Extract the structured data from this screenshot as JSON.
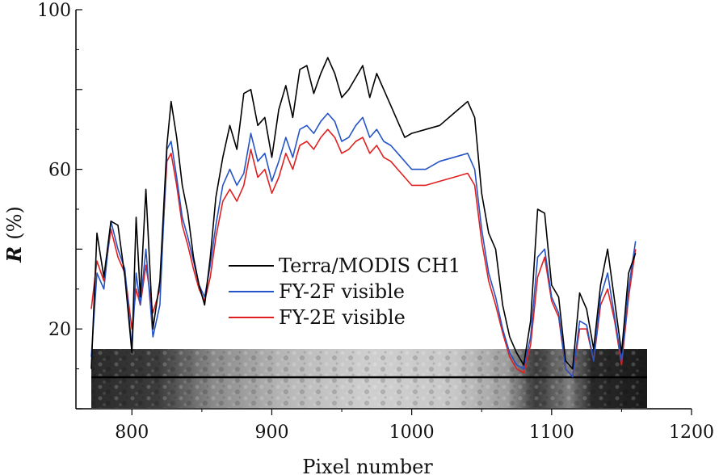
{
  "chart_data": {
    "type": "line",
    "xlabel": "Pixel number",
    "ylabel_symbol": "R",
    "ylabel_unit": "(%)",
    "xlim": [
      760,
      1200
    ],
    "ylim": [
      0,
      100
    ],
    "x_ticks": [
      800,
      900,
      1000,
      1100,
      1200
    ],
    "y_ticks": [
      20,
      60,
      100
    ],
    "legend_position": "center",
    "inset_image": {
      "description_kind": "satellite-strip",
      "x_range": [
        771,
        1183
      ],
      "y_range": [
        1,
        23
      ],
      "scan_line_y": 10
    },
    "series": [
      {
        "name": "Terra/MODIS CH1",
        "color": "#000000",
        "x": [
          771,
          775,
          780,
          785,
          790,
          795,
          800,
          803,
          806,
          810,
          815,
          820,
          825,
          828,
          832,
          836,
          840,
          844,
          848,
          852,
          856,
          860,
          865,
          870,
          875,
          880,
          885,
          890,
          895,
          900,
          905,
          910,
          915,
          920,
          925,
          930,
          935,
          940,
          945,
          950,
          955,
          960,
          965,
          970,
          975,
          980,
          985,
          990,
          995,
          1000,
          1010,
          1020,
          1030,
          1040,
          1045,
          1050,
          1055,
          1060,
          1065,
          1070,
          1075,
          1080,
          1085,
          1090,
          1095,
          1100,
          1105,
          1110,
          1115,
          1120,
          1125,
          1130,
          1135,
          1140,
          1145,
          1150,
          1155,
          1160
        ],
        "values": [
          10,
          44,
          33,
          47,
          46,
          33,
          14,
          48,
          28,
          55,
          20,
          32,
          66,
          77,
          68,
          56,
          49,
          38,
          31,
          26,
          38,
          53,
          63,
          71,
          65,
          79,
          80,
          71,
          73,
          63,
          75,
          81,
          73,
          85,
          86,
          79,
          84,
          88,
          84,
          78,
          80,
          83,
          86,
          78,
          84,
          80,
          76,
          72,
          68,
          69,
          70,
          71,
          74,
          77,
          73,
          54,
          44,
          40,
          26,
          18,
          14,
          11,
          22,
          50,
          49,
          31,
          28,
          12,
          10,
          29,
          25,
          15,
          31,
          40,
          27,
          14,
          34,
          39
        ]
      },
      {
        "name": "FY-2F visible",
        "color": "#2554c7",
        "x": [
          771,
          775,
          780,
          785,
          790,
          795,
          800,
          803,
          806,
          810,
          815,
          820,
          825,
          828,
          832,
          836,
          840,
          844,
          848,
          852,
          856,
          860,
          865,
          870,
          875,
          880,
          885,
          890,
          895,
          900,
          905,
          910,
          915,
          920,
          925,
          930,
          935,
          940,
          945,
          950,
          955,
          960,
          965,
          970,
          975,
          980,
          985,
          990,
          995,
          1000,
          1010,
          1020,
          1030,
          1040,
          1045,
          1050,
          1055,
          1060,
          1065,
          1070,
          1075,
          1080,
          1085,
          1090,
          1095,
          1100,
          1105,
          1110,
          1115,
          1120,
          1125,
          1130,
          1135,
          1140,
          1145,
          1150,
          1155,
          1160
        ],
        "values": [
          13,
          34,
          30,
          47,
          40,
          35,
          15,
          34,
          26,
          40,
          18,
          26,
          65,
          67,
          58,
          48,
          43,
          37,
          31,
          28,
          36,
          46,
          56,
          60,
          56,
          59,
          69,
          62,
          64,
          57,
          62,
          68,
          63,
          70,
          71,
          69,
          72,
          74,
          72,
          67,
          68,
          71,
          73,
          68,
          70,
          67,
          66,
          64,
          62,
          60,
          60,
          62,
          63,
          64,
          60,
          45,
          34,
          28,
          20,
          14,
          11,
          10,
          18,
          38,
          40,
          28,
          24,
          10,
          8,
          22,
          21,
          12,
          28,
          34,
          23,
          12,
          30,
          42
        ]
      },
      {
        "name": "FY-2E visible",
        "color": "#e02020",
        "x": [
          771,
          775,
          780,
          785,
          790,
          795,
          800,
          803,
          806,
          810,
          815,
          820,
          825,
          828,
          832,
          836,
          840,
          844,
          848,
          852,
          856,
          860,
          865,
          870,
          875,
          880,
          885,
          890,
          895,
          900,
          905,
          910,
          915,
          920,
          925,
          930,
          935,
          940,
          945,
          950,
          955,
          960,
          965,
          970,
          975,
          980,
          985,
          990,
          995,
          1000,
          1010,
          1020,
          1030,
          1040,
          1045,
          1050,
          1055,
          1060,
          1065,
          1070,
          1075,
          1080,
          1085,
          1090,
          1095,
          1100,
          1105,
          1110,
          1115,
          1120,
          1125,
          1130,
          1135,
          1140,
          1145,
          1150,
          1155,
          1160
        ],
        "values": [
          25,
          37,
          32,
          45,
          38,
          34,
          20,
          30,
          26,
          36,
          24,
          30,
          62,
          64,
          56,
          46,
          41,
          35,
          30,
          27,
          33,
          43,
          52,
          55,
          52,
          56,
          65,
          58,
          60,
          54,
          58,
          64,
          60,
          66,
          67,
          65,
          68,
          70,
          68,
          64,
          65,
          67,
          68,
          64,
          66,
          63,
          62,
          60,
          58,
          56,
          56,
          57,
          58,
          59,
          56,
          42,
          32,
          26,
          19,
          13,
          10,
          9,
          16,
          33,
          38,
          27,
          23,
          10,
          8,
          20,
          20,
          12,
          26,
          30,
          22,
          11,
          28,
          40
        ]
      }
    ]
  }
}
